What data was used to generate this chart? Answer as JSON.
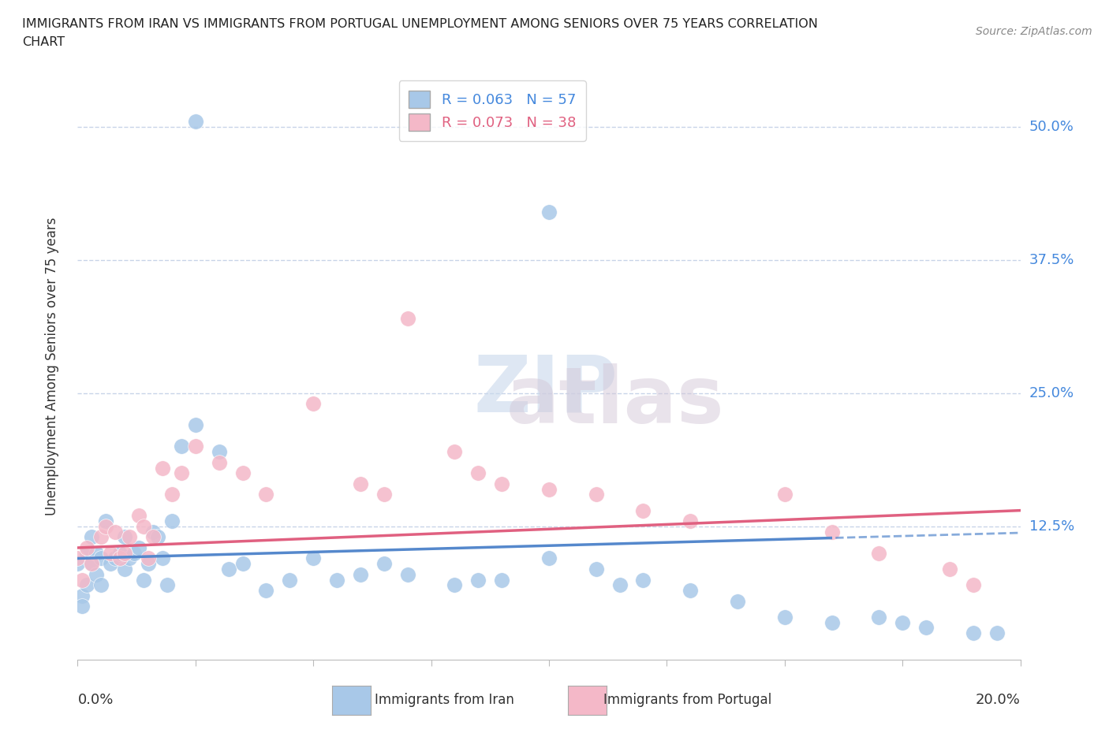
{
  "title_line1": "IMMIGRANTS FROM IRAN VS IMMIGRANTS FROM PORTUGAL UNEMPLOYMENT AMONG SENIORS OVER 75 YEARS CORRELATION",
  "title_line2": "CHART",
  "source": "Source: ZipAtlas.com",
  "ylabel": "Unemployment Among Seniors over 75 years",
  "ytick_labels": [
    "12.5%",
    "25.0%",
    "37.5%",
    "50.0%"
  ],
  "ytick_values": [
    0.125,
    0.25,
    0.375,
    0.5
  ],
  "xlim": [
    0.0,
    0.2
  ],
  "ylim": [
    0.0,
    0.55
  ],
  "iran_R": 0.063,
  "iran_N": 57,
  "portugal_R": 0.073,
  "portugal_N": 38,
  "iran_color": "#a8c8e8",
  "portugal_color": "#f4b8c8",
  "iran_line_color": "#5588cc",
  "portugal_line_color": "#e06080",
  "iran_label_color": "#4488dd",
  "iran_trend_slope": 0.12,
  "iran_trend_intercept": 0.095,
  "portugal_trend_slope": 0.175,
  "portugal_trend_intercept": 0.105,
  "iran_points_x": [
    0.0,
    0.001,
    0.001,
    0.002,
    0.002,
    0.003,
    0.003,
    0.004,
    0.004,
    0.005,
    0.005,
    0.006,
    0.007,
    0.008,
    0.009,
    0.01,
    0.01,
    0.011,
    0.012,
    0.013,
    0.014,
    0.015,
    0.016,
    0.017,
    0.018,
    0.019,
    0.02,
    0.022,
    0.025,
    0.03,
    0.032,
    0.035,
    0.04,
    0.045,
    0.05,
    0.055,
    0.06,
    0.065,
    0.07,
    0.08,
    0.085,
    0.09,
    0.1,
    0.11,
    0.115,
    0.12,
    0.13,
    0.14,
    0.15,
    0.16,
    0.17,
    0.175,
    0.18,
    0.19,
    0.195,
    0.025,
    0.1
  ],
  "iran_points_y": [
    0.09,
    0.06,
    0.05,
    0.07,
    0.1,
    0.09,
    0.115,
    0.08,
    0.1,
    0.07,
    0.095,
    0.13,
    0.09,
    0.095,
    0.1,
    0.085,
    0.115,
    0.095,
    0.1,
    0.105,
    0.075,
    0.09,
    0.12,
    0.115,
    0.095,
    0.07,
    0.13,
    0.2,
    0.22,
    0.195,
    0.085,
    0.09,
    0.065,
    0.075,
    0.095,
    0.075,
    0.08,
    0.09,
    0.08,
    0.07,
    0.075,
    0.075,
    0.095,
    0.085,
    0.07,
    0.075,
    0.065,
    0.055,
    0.04,
    0.035,
    0.04,
    0.035,
    0.03,
    0.025,
    0.025,
    0.505,
    0.42
  ],
  "portugal_points_x": [
    0.0,
    0.001,
    0.002,
    0.003,
    0.005,
    0.006,
    0.007,
    0.008,
    0.009,
    0.01,
    0.011,
    0.013,
    0.014,
    0.015,
    0.016,
    0.018,
    0.02,
    0.022,
    0.025,
    0.03,
    0.035,
    0.04,
    0.05,
    0.06,
    0.065,
    0.07,
    0.08,
    0.085,
    0.09,
    0.1,
    0.11,
    0.12,
    0.13,
    0.15,
    0.16,
    0.17,
    0.185,
    0.19
  ],
  "portugal_points_y": [
    0.095,
    0.075,
    0.105,
    0.09,
    0.115,
    0.125,
    0.1,
    0.12,
    0.095,
    0.1,
    0.115,
    0.135,
    0.125,
    0.095,
    0.115,
    0.18,
    0.155,
    0.175,
    0.2,
    0.185,
    0.175,
    0.155,
    0.24,
    0.165,
    0.155,
    0.32,
    0.195,
    0.175,
    0.165,
    0.16,
    0.155,
    0.14,
    0.13,
    0.155,
    0.12,
    0.1,
    0.085,
    0.07
  ],
  "watermark_top": "ZIP",
  "watermark_bottom": "atlas",
  "background_color": "#ffffff",
  "grid_color": "#c8d4e8",
  "axis_color": "#bbbbbb"
}
